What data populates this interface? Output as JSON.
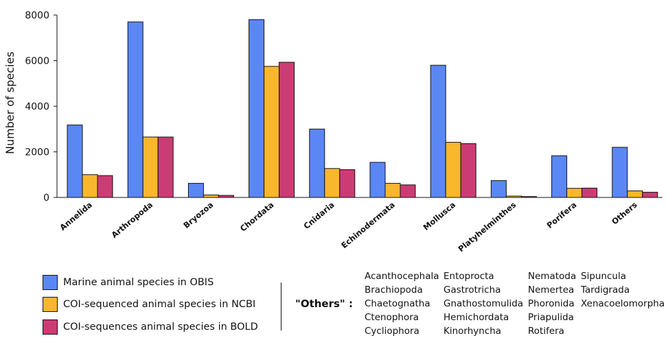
{
  "chart_data": {
    "type": "bar",
    "ylabel": "Number of species",
    "ylim": [
      0,
      8000
    ],
    "yticks": [
      0,
      2000,
      4000,
      6000,
      8000
    ],
    "categories": [
      "Annelida",
      "Arthropoda",
      "Bryozoa",
      "Chordata",
      "Cnidaria",
      "Echinodermata",
      "Mollusca",
      "Platyhelminthes",
      "Porifera",
      "Others"
    ],
    "series": [
      {
        "name": "Marine animal species in OBIS",
        "color": "#5B87F4",
        "values": [
          3180,
          7700,
          620,
          7800,
          3000,
          1540,
          5800,
          740,
          1830,
          2200
        ]
      },
      {
        "name": "COI-sequenced animal species in NCBI",
        "color": "#F9B72E",
        "values": [
          1000,
          2650,
          110,
          5750,
          1270,
          620,
          2420,
          60,
          400,
          290
        ]
      },
      {
        "name": "COI-sequences animal species in BOLD",
        "color": "#CC3C74",
        "values": [
          960,
          2650,
          90,
          5930,
          1220,
          550,
          2360,
          40,
          410,
          230
        ]
      }
    ],
    "grid": false,
    "legend_position": "bottom-left"
  },
  "others_box": {
    "label": "\"Others\" :",
    "columns": [
      [
        "Acanthocephala",
        "Brachiopoda",
        "Chaetognatha",
        "Ctenophora",
        "Cycliophora"
      ],
      [
        "Entoprocta",
        "Gastrotricha",
        "Gnathostomulida",
        "Hemichordata",
        "Kinorhyncha"
      ],
      [
        "Nematoda",
        "Nemertea",
        "Phoronida",
        "Priapulida",
        "Rotifera"
      ],
      [
        "Sipuncula",
        "Tardigrada",
        "Xenacoelomorpha"
      ]
    ]
  }
}
